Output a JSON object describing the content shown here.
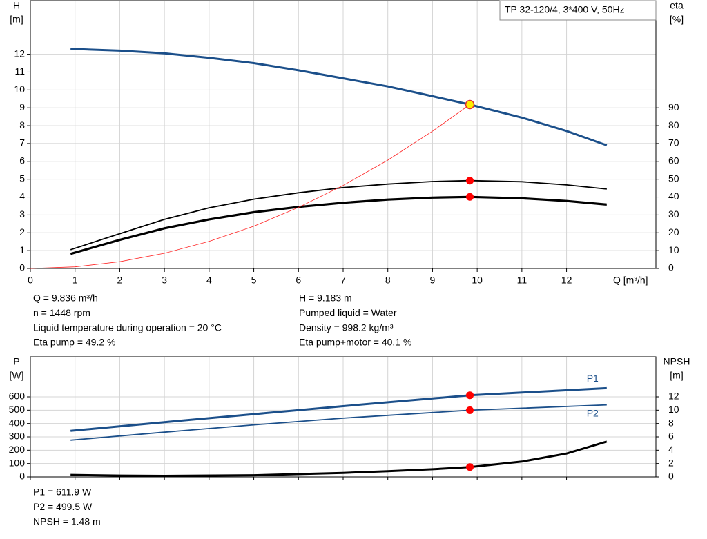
{
  "chart_data": [
    {
      "type": "line",
      "title": "TP 32-120/4, 3*400 V, 50Hz",
      "xlabel": "Q [m³/h]",
      "ylabel": [
        "H",
        "[m]"
      ],
      "y2label": [
        "eta",
        "[%]"
      ],
      "xlim": [
        0,
        14
      ],
      "xticks": [
        0,
        1,
        2,
        3,
        4,
        5,
        6,
        7,
        8,
        9,
        10,
        11,
        12
      ],
      "ylim": [
        0,
        15
      ],
      "yticks": [
        0,
        1,
        2,
        3,
        4,
        5,
        6,
        7,
        8,
        9,
        10,
        11,
        12
      ],
      "y2lim": [
        0,
        150
      ],
      "y2ticks": [
        0,
        10,
        20,
        30,
        40,
        50,
        60,
        70,
        80,
        90
      ],
      "grid": true,
      "show_xtick_labels": true,
      "series": [
        {
          "color": "#1b4f8a",
          "line_width": 3,
          "axis": "y",
          "x": [
            0.9,
            2,
            3,
            4,
            5,
            6,
            7,
            8,
            9,
            9.836,
            11,
            12,
            12.9
          ],
          "values": [
            12.3,
            12.2,
            12.05,
            11.8,
            11.5,
            11.1,
            10.65,
            10.2,
            9.65,
            9.183,
            8.45,
            7.7,
            6.9
          ]
        },
        {
          "color": "#000000",
          "line_width": 1.8,
          "axis": "y2",
          "x": [
            0.9,
            2,
            3,
            4,
            5,
            6,
            7,
            8,
            9,
            9.836,
            11,
            12,
            12.9
          ],
          "values": [
            10.5,
            19.5,
            27.5,
            34,
            38.8,
            42.4,
            45.3,
            47.3,
            48.7,
            49.2,
            48.6,
            46.8,
            44.5
          ]
        },
        {
          "color": "#000000",
          "line_width": 3.2,
          "axis": "y2",
          "x": [
            0.9,
            2,
            3,
            4,
            5,
            6,
            7,
            8,
            9,
            9.836,
            11,
            12,
            12.9
          ],
          "values": [
            8.2,
            16,
            22.5,
            27.5,
            31.5,
            34.5,
            36.8,
            38.6,
            39.7,
            40.1,
            39.3,
            37.8,
            35.8
          ]
        },
        {
          "color": "#ff2020",
          "line_width": 0.8,
          "axis": "y",
          "x": [
            0,
            1,
            2,
            3,
            4,
            5,
            6,
            7,
            8,
            9,
            9.836
          ],
          "values": [
            0,
            0.09,
            0.38,
            0.85,
            1.52,
            2.37,
            3.42,
            4.65,
            6.07,
            7.69,
            9.183
          ]
        }
      ],
      "points": [
        {
          "x": 9.836,
          "value": 9.183,
          "axis": "y",
          "color": "#ffee00"
        },
        {
          "x": 9.836,
          "value": 49.2,
          "axis": "y2",
          "color": "#ff0000"
        },
        {
          "x": 9.836,
          "value": 40.1,
          "axis": "y2",
          "color": "#ff0000"
        }
      ],
      "info": [
        [
          "Q = 9.836 m³/h",
          "n = 1448 rpm",
          "Liquid temperature during operation = 20 °C",
          "Eta pump = 49.2 %"
        ],
        [
          "H = 9.183 m",
          "Pumped liquid = Water",
          "Density = 998.2 kg/m³",
          "Eta pump+motor = 40.1 %"
        ]
      ]
    },
    {
      "type": "line",
      "ylabel": [
        "P",
        "[W]"
      ],
      "y2label": [
        "NPSH",
        "[m]"
      ],
      "xlim": [
        0,
        14
      ],
      "xticks": [
        0,
        1,
        2,
        3,
        4,
        5,
        6,
        7,
        8,
        9,
        10,
        11,
        12
      ],
      "ylim": [
        0,
        900
      ],
      "yticks": [
        0,
        100,
        200,
        300,
        400,
        500,
        600
      ],
      "y2lim": [
        0,
        18
      ],
      "y2ticks": [
        0,
        2,
        4,
        6,
        8,
        10,
        12
      ],
      "grid": true,
      "show_xtick_labels": false,
      "series": [
        {
          "name": "P1",
          "color": "#1b4f8a",
          "line_width": 3,
          "axis": "y",
          "x": [
            0.9,
            3,
            5,
            7,
            9.836,
            12.9
          ],
          "values": [
            345,
            410,
            470,
            530,
            611.9,
            665
          ]
        },
        {
          "name": "P2",
          "color": "#1b4f8a",
          "line_width": 1.8,
          "axis": "y",
          "x": [
            0.9,
            3,
            5,
            7,
            9.836,
            12.9
          ],
          "values": [
            275,
            335,
            390,
            440,
            499.5,
            540
          ]
        },
        {
          "color": "#000000",
          "line_width": 3,
          "axis": "y2",
          "x": [
            0.9,
            2,
            3,
            5,
            7,
            8,
            9,
            9.836,
            11,
            12,
            12.9
          ],
          "values": [
            0.3,
            0.2,
            0.15,
            0.25,
            0.6,
            0.85,
            1.15,
            1.48,
            2.3,
            3.5,
            5.3
          ]
        }
      ],
      "points": [
        {
          "x": 9.836,
          "value": 611.9,
          "axis": "y",
          "color": "#ff0000"
        },
        {
          "x": 9.836,
          "value": 499.5,
          "axis": "y",
          "color": "#ff0000"
        },
        {
          "x": 9.836,
          "value": 1.48,
          "axis": "y2",
          "color": "#ff0000"
        }
      ],
      "info": [
        [
          "P1 = 611.9 W",
          "P2 = 499.5 W",
          "NPSH = 1.48 m"
        ]
      ]
    }
  ]
}
